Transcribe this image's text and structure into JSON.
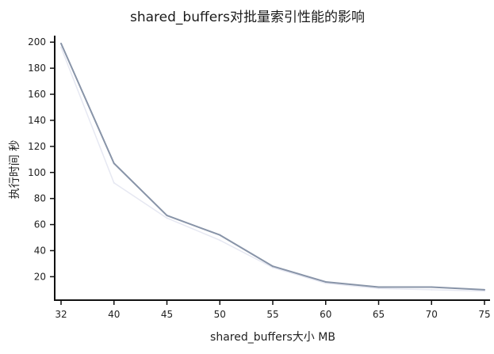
{
  "chart_data": {
    "type": "line",
    "title": "shared_buffers对批量索引性能的影响",
    "xlabel": "shared_buffers大小 MB",
    "ylabel": "执行时间 秒",
    "x": [
      32,
      40,
      45,
      50,
      55,
      60,
      65,
      70,
      75
    ],
    "x_tick_labels": [
      "32",
      "40",
      "45",
      "50",
      "55",
      "60",
      "65",
      "70",
      "75"
    ],
    "y_ticks": [
      20,
      40,
      60,
      80,
      100,
      120,
      140,
      160,
      180,
      200
    ],
    "y_tick_labels": [
      "20",
      "40",
      "60",
      "80",
      "100",
      "120",
      "140",
      "160",
      "180",
      "200"
    ],
    "ylim": [
      2,
      205
    ],
    "x_scale": "categorical-evenly-spaced",
    "grid": false,
    "legend": "none",
    "series": [
      {
        "values": [
          199,
          107,
          67,
          52,
          28,
          16,
          12,
          12,
          10
        ],
        "color": "#8894a8"
      },
      {
        "values": [
          196,
          92,
          65,
          48,
          27,
          15,
          11,
          10,
          9
        ],
        "color": "#e6e8f2"
      }
    ]
  }
}
